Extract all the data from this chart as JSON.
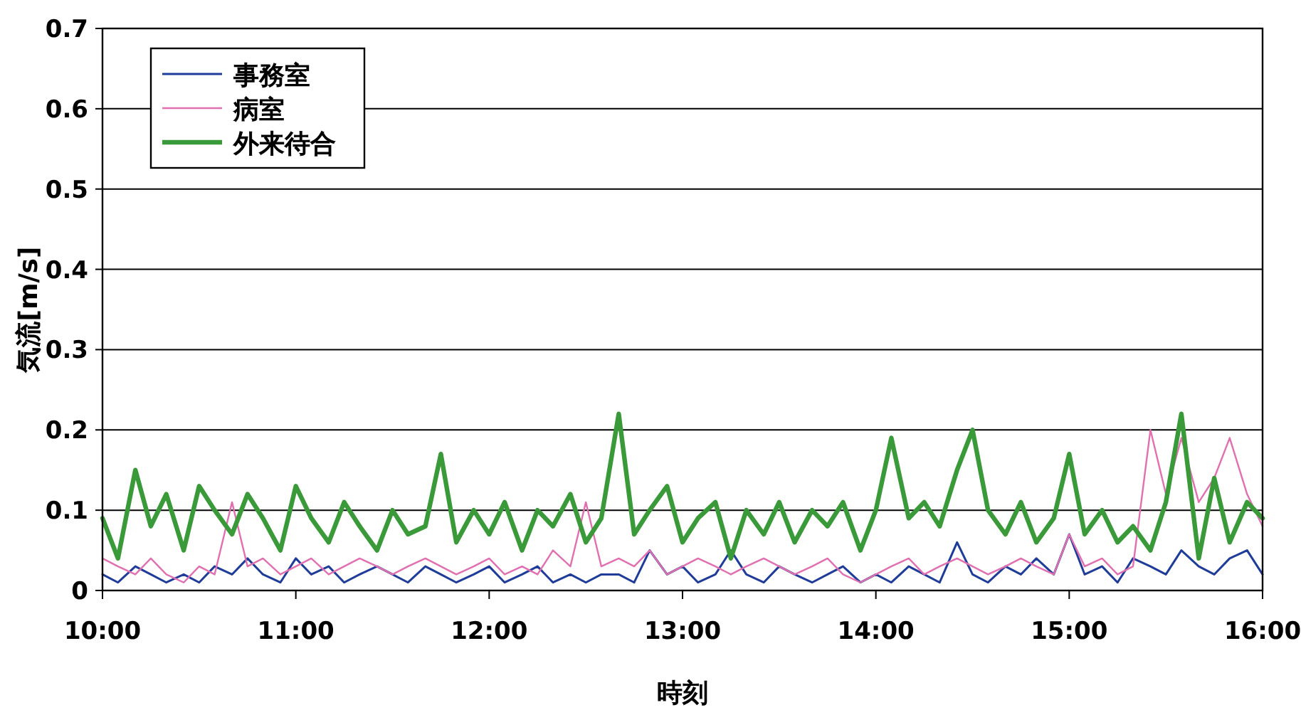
{
  "chart_data": {
    "type": "line",
    "xlabel": "時刻",
    "ylabel": "気流[m/s]",
    "x": [
      10,
      10.08,
      10.17,
      10.25,
      10.33,
      10.42,
      10.5,
      10.58,
      10.67,
      10.75,
      10.83,
      10.92,
      11,
      11.08,
      11.17,
      11.25,
      11.33,
      11.42,
      11.5,
      11.58,
      11.67,
      11.75,
      11.83,
      11.92,
      12,
      12.08,
      12.17,
      12.25,
      12.33,
      12.42,
      12.5,
      12.58,
      12.67,
      12.75,
      12.83,
      12.92,
      13,
      13.08,
      13.17,
      13.25,
      13.33,
      13.42,
      13.5,
      13.58,
      13.67,
      13.75,
      13.83,
      13.92,
      14,
      14.08,
      14.17,
      14.25,
      14.33,
      14.42,
      14.5,
      14.58,
      14.67,
      14.75,
      14.83,
      14.92,
      15,
      15.08,
      15.17,
      15.25,
      15.33,
      15.42,
      15.5,
      15.58,
      15.67,
      15.75,
      15.83,
      15.92,
      16
    ],
    "series": [
      {
        "name": "事務室",
        "color": "#1f3c99",
        "values": [
          0.02,
          0.01,
          0.03,
          0.02,
          0.01,
          0.02,
          0.01,
          0.03,
          0.02,
          0.04,
          0.02,
          0.01,
          0.04,
          0.02,
          0.03,
          0.01,
          0.02,
          0.03,
          0.02,
          0.01,
          0.03,
          0.02,
          0.01,
          0.02,
          0.03,
          0.01,
          0.02,
          0.03,
          0.01,
          0.02,
          0.01,
          0.02,
          0.02,
          0.01,
          0.05,
          0.02,
          0.03,
          0.01,
          0.02,
          0.05,
          0.02,
          0.01,
          0.03,
          0.02,
          0.01,
          0.02,
          0.03,
          0.01,
          0.02,
          0.01,
          0.03,
          0.02,
          0.01,
          0.06,
          0.02,
          0.01,
          0.03,
          0.02,
          0.04,
          0.02,
          0.07,
          0.02,
          0.03,
          0.01,
          0.04,
          0.03,
          0.02,
          0.05,
          0.03,
          0.02,
          0.04,
          0.05,
          0.02
        ]
      },
      {
        "name": "病室",
        "color": "#e070b0",
        "values": [
          0.04,
          0.03,
          0.02,
          0.04,
          0.02,
          0.01,
          0.03,
          0.02,
          0.11,
          0.03,
          0.04,
          0.02,
          0.03,
          0.04,
          0.02,
          0.03,
          0.04,
          0.03,
          0.02,
          0.03,
          0.04,
          0.03,
          0.02,
          0.03,
          0.04,
          0.02,
          0.03,
          0.02,
          0.05,
          0.03,
          0.11,
          0.03,
          0.04,
          0.03,
          0.05,
          0.02,
          0.03,
          0.04,
          0.03,
          0.02,
          0.03,
          0.04,
          0.03,
          0.02,
          0.03,
          0.04,
          0.02,
          0.01,
          0.02,
          0.03,
          0.04,
          0.02,
          0.03,
          0.04,
          0.03,
          0.02,
          0.03,
          0.04,
          0.03,
          0.02,
          0.07,
          0.03,
          0.04,
          0.02,
          0.03,
          0.2,
          0.12,
          0.19,
          0.11,
          0.14,
          0.19,
          0.12,
          0.08
        ]
      },
      {
        "name": "外来待合",
        "color": "#3a9a3a",
        "values": [
          0.09,
          0.04,
          0.15,
          0.08,
          0.12,
          0.05,
          0.13,
          0.1,
          0.07,
          0.12,
          0.09,
          0.05,
          0.13,
          0.09,
          0.06,
          0.11,
          0.08,
          0.05,
          0.1,
          0.07,
          0.08,
          0.17,
          0.06,
          0.1,
          0.07,
          0.11,
          0.05,
          0.1,
          0.08,
          0.12,
          0.06,
          0.09,
          0.22,
          0.07,
          0.1,
          0.13,
          0.06,
          0.09,
          0.11,
          0.04,
          0.1,
          0.07,
          0.11,
          0.06,
          0.1,
          0.08,
          0.11,
          0.05,
          0.1,
          0.19,
          0.09,
          0.11,
          0.08,
          0.15,
          0.2,
          0.1,
          0.07,
          0.11,
          0.06,
          0.09,
          0.17,
          0.07,
          0.1,
          0.06,
          0.08,
          0.05,
          0.11,
          0.22,
          0.04,
          0.14,
          0.06,
          0.11,
          0.09
        ]
      }
    ],
    "xlim": [
      10,
      16
    ],
    "xticks": [
      {
        "value": 10,
        "label": "10:00"
      },
      {
        "value": 11,
        "label": "11:00"
      },
      {
        "value": 12,
        "label": "12:00"
      },
      {
        "value": 13,
        "label": "13:00"
      },
      {
        "value": 14,
        "label": "14:00"
      },
      {
        "value": 15,
        "label": "15:00"
      },
      {
        "value": 16,
        "label": "16:00"
      }
    ],
    "ylim": [
      0,
      0.7
    ],
    "yticks": [
      0,
      0.1,
      0.2,
      0.3,
      0.4,
      0.5,
      0.6,
      0.7
    ],
    "grid": "y",
    "legend": "top left"
  }
}
